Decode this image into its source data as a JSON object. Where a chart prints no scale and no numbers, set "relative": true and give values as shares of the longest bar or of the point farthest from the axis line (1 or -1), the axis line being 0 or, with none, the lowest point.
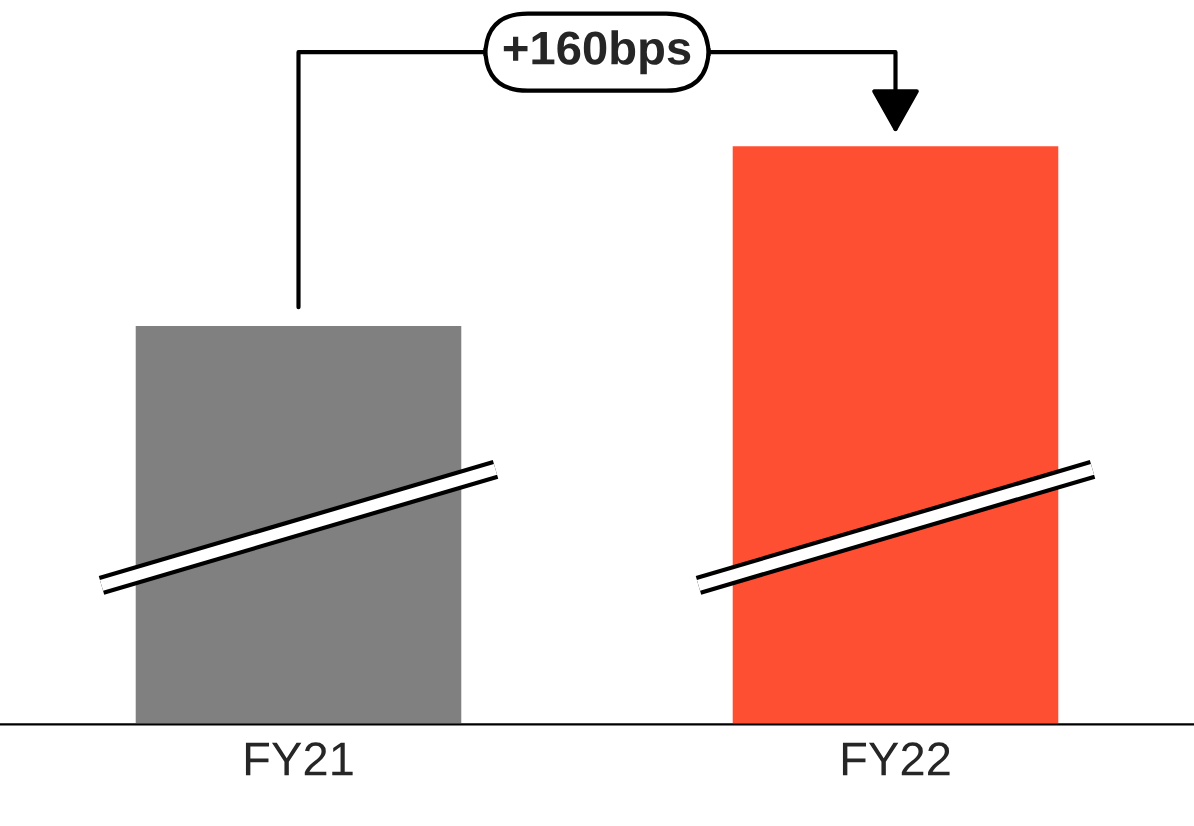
{
  "chart_data": {
    "type": "bar",
    "relative": true,
    "categories": [
      "FY21",
      "FY22"
    ],
    "values": [
      0.69,
      1
    ],
    "colors": [
      "#808080",
      "#ff4f33"
    ],
    "annotations": [
      "+160bps"
    ],
    "grid": false,
    "legend": false
  }
}
